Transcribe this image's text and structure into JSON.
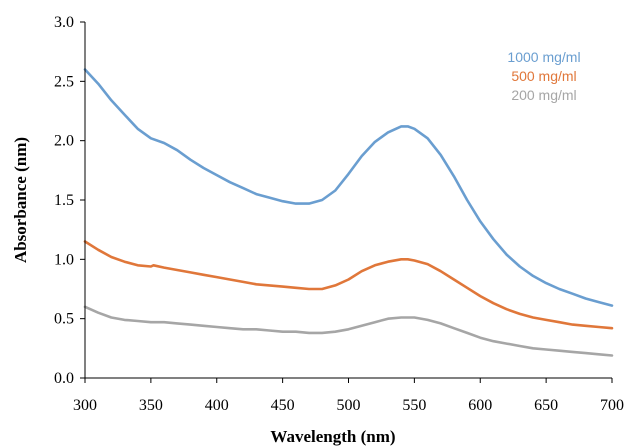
{
  "chart_data": {
    "type": "line",
    "xlabel": "Wavelength (nm)",
    "ylabel": "Absorbance (nm)",
    "xlim": [
      300,
      700
    ],
    "ylim": [
      0.0,
      3.0
    ],
    "x_ticks": [
      "300",
      "350",
      "400",
      "450",
      "500",
      "550",
      "600",
      "650",
      "700"
    ],
    "y_ticks": [
      "0.0",
      "0.5",
      "1.0",
      "1.5",
      "2.0",
      "2.5",
      "3.0"
    ],
    "grid": false,
    "legend_position": "top-right",
    "series": [
      {
        "name": "1000 mg/ml",
        "color": "#6A9ED0",
        "points": [
          [
            300,
            2.6
          ],
          [
            310,
            2.48
          ],
          [
            320,
            2.34
          ],
          [
            330,
            2.22
          ],
          [
            340,
            2.1
          ],
          [
            350,
            2.02
          ],
          [
            360,
            1.98
          ],
          [
            370,
            1.92
          ],
          [
            380,
            1.84
          ],
          [
            390,
            1.77
          ],
          [
            400,
            1.71
          ],
          [
            410,
            1.65
          ],
          [
            420,
            1.6
          ],
          [
            430,
            1.55
          ],
          [
            440,
            1.52
          ],
          [
            450,
            1.49
          ],
          [
            460,
            1.47
          ],
          [
            470,
            1.47
          ],
          [
            480,
            1.5
          ],
          [
            490,
            1.58
          ],
          [
            500,
            1.72
          ],
          [
            510,
            1.87
          ],
          [
            520,
            1.99
          ],
          [
            530,
            2.07
          ],
          [
            540,
            2.12
          ],
          [
            545,
            2.12
          ],
          [
            550,
            2.1
          ],
          [
            560,
            2.02
          ],
          [
            570,
            1.88
          ],
          [
            580,
            1.7
          ],
          [
            590,
            1.5
          ],
          [
            600,
            1.32
          ],
          [
            610,
            1.17
          ],
          [
            620,
            1.04
          ],
          [
            630,
            0.94
          ],
          [
            640,
            0.86
          ],
          [
            650,
            0.8
          ],
          [
            660,
            0.75
          ],
          [
            670,
            0.71
          ],
          [
            680,
            0.67
          ],
          [
            690,
            0.64
          ],
          [
            700,
            0.61
          ]
        ]
      },
      {
        "name": "500 mg/ml",
        "color": "#E0773A",
        "points": [
          [
            300,
            1.15
          ],
          [
            310,
            1.08
          ],
          [
            320,
            1.02
          ],
          [
            330,
            0.98
          ],
          [
            340,
            0.95
          ],
          [
            350,
            0.94
          ],
          [
            352,
            0.95
          ],
          [
            360,
            0.93
          ],
          [
            370,
            0.91
          ],
          [
            380,
            0.89
          ],
          [
            390,
            0.87
          ],
          [
            400,
            0.85
          ],
          [
            410,
            0.83
          ],
          [
            420,
            0.81
          ],
          [
            430,
            0.79
          ],
          [
            440,
            0.78
          ],
          [
            450,
            0.77
          ],
          [
            460,
            0.76
          ],
          [
            470,
            0.75
          ],
          [
            480,
            0.75
          ],
          [
            490,
            0.78
          ],
          [
            500,
            0.83
          ],
          [
            510,
            0.9
          ],
          [
            520,
            0.95
          ],
          [
            530,
            0.98
          ],
          [
            540,
            1.0
          ],
          [
            545,
            1.0
          ],
          [
            550,
            0.99
          ],
          [
            560,
            0.96
          ],
          [
            570,
            0.9
          ],
          [
            580,
            0.83
          ],
          [
            590,
            0.76
          ],
          [
            600,
            0.69
          ],
          [
            610,
            0.63
          ],
          [
            620,
            0.58
          ],
          [
            630,
            0.54
          ],
          [
            640,
            0.51
          ],
          [
            650,
            0.49
          ],
          [
            660,
            0.47
          ],
          [
            670,
            0.45
          ],
          [
            680,
            0.44
          ],
          [
            690,
            0.43
          ],
          [
            700,
            0.42
          ]
        ]
      },
      {
        "name": "200 mg/ml",
        "color": "#A6A6A6",
        "points": [
          [
            300,
            0.6
          ],
          [
            310,
            0.55
          ],
          [
            320,
            0.51
          ],
          [
            330,
            0.49
          ],
          [
            340,
            0.48
          ],
          [
            350,
            0.47
          ],
          [
            360,
            0.47
          ],
          [
            370,
            0.46
          ],
          [
            380,
            0.45
          ],
          [
            390,
            0.44
          ],
          [
            400,
            0.43
          ],
          [
            410,
            0.42
          ],
          [
            420,
            0.41
          ],
          [
            430,
            0.41
          ],
          [
            440,
            0.4
          ],
          [
            450,
            0.39
          ],
          [
            460,
            0.39
          ],
          [
            470,
            0.38
          ],
          [
            480,
            0.38
          ],
          [
            490,
            0.39
          ],
          [
            500,
            0.41
          ],
          [
            510,
            0.44
          ],
          [
            520,
            0.47
          ],
          [
            530,
            0.5
          ],
          [
            540,
            0.51
          ],
          [
            545,
            0.51
          ],
          [
            550,
            0.51
          ],
          [
            560,
            0.49
          ],
          [
            570,
            0.46
          ],
          [
            580,
            0.42
          ],
          [
            590,
            0.38
          ],
          [
            600,
            0.34
          ],
          [
            610,
            0.31
          ],
          [
            620,
            0.29
          ],
          [
            630,
            0.27
          ],
          [
            640,
            0.25
          ],
          [
            650,
            0.24
          ],
          [
            660,
            0.23
          ],
          [
            670,
            0.22
          ],
          [
            680,
            0.21
          ],
          [
            690,
            0.2
          ],
          [
            700,
            0.19
          ]
        ]
      }
    ]
  }
}
